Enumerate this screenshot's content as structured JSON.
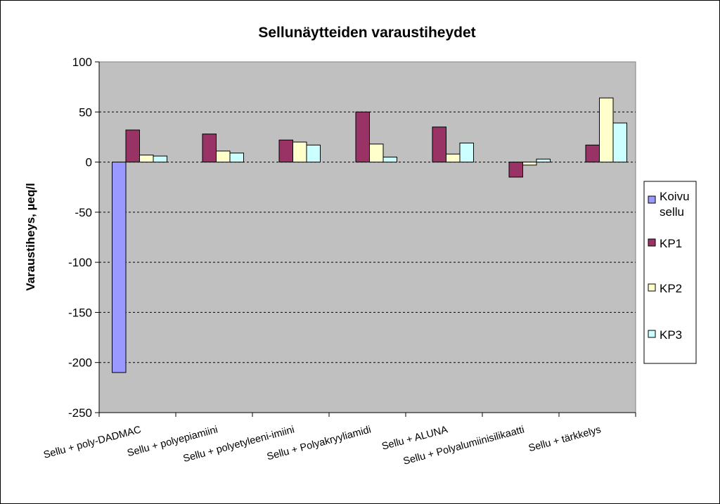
{
  "chart_data": {
    "type": "bar",
    "title": "Sellunäytteiden varaustiheydet",
    "xlabel": "",
    "ylabel": "Varaustiheys, µeq/l",
    "ylim": [
      -250,
      100
    ],
    "yticks": [
      100,
      50,
      0,
      -50,
      -100,
      -150,
      -200,
      -250
    ],
    "grid": true,
    "legend_position": "right",
    "categories": [
      "Sellu + poly-DADMAC",
      "Sellu + polyepiamiini",
      "Sellu + polyetyleeni-imiini",
      "Sellu + Polyakryyliamidi",
      "Sellu + ALUNA",
      "Sellu + Polyalumiinisilikaatti",
      "Sellu + tärkkelys"
    ],
    "series": [
      {
        "name": "Koivu sellu",
        "color": "#9999ff",
        "values": [
          -210,
          null,
          null,
          null,
          null,
          null,
          null
        ]
      },
      {
        "name": "KP1",
        "color": "#993366",
        "values": [
          32,
          28,
          22,
          50,
          35,
          -15,
          17
        ]
      },
      {
        "name": "KP2",
        "color": "#ffffcc",
        "values": [
          7,
          11,
          20,
          18,
          8,
          -3,
          64
        ]
      },
      {
        "name": "KP3",
        "color": "#ccffff",
        "values": [
          6,
          9,
          17,
          5,
          19,
          3,
          39
        ]
      }
    ],
    "plot_background": "#c0c0c0"
  }
}
